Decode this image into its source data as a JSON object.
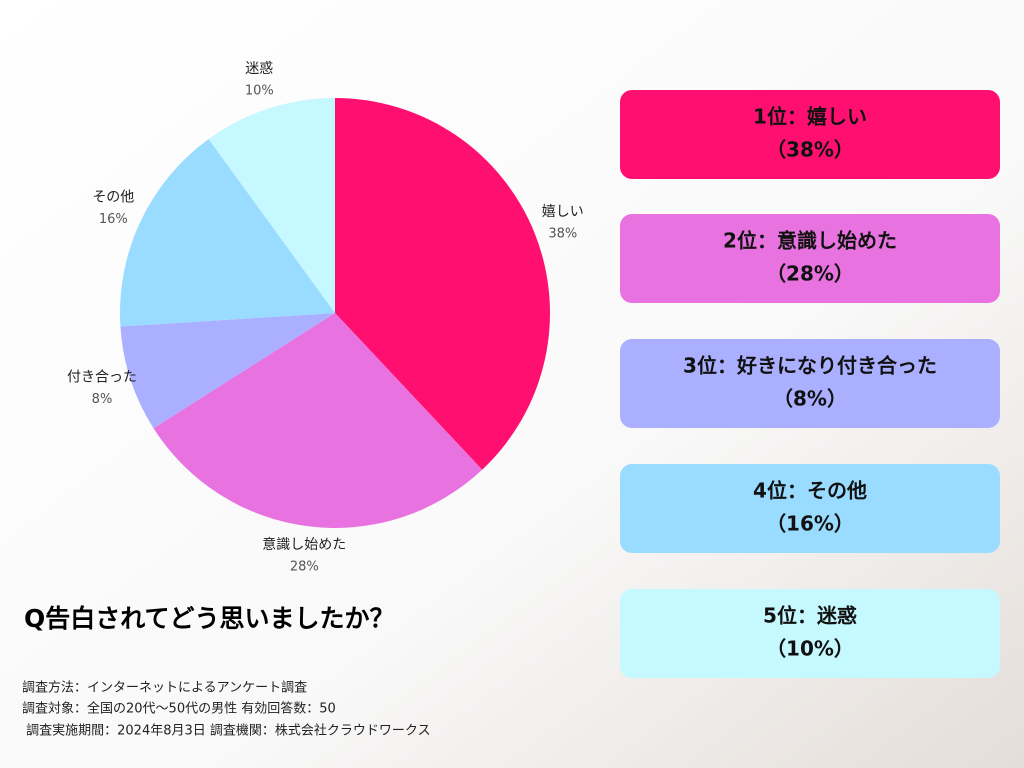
{
  "chart_data": {
    "type": "pie",
    "categories": [
      "嬉しい",
      "意識し始めた",
      "付き合った",
      "その他",
      "迷惑"
    ],
    "values": [
      38,
      28,
      8,
      16,
      10
    ],
    "value_labels": [
      "38%",
      "28%",
      "8%",
      "16%",
      "10%"
    ],
    "colors": [
      "#ff1070",
      "#e873e0",
      "#aab0ff",
      "#99dcff",
      "#c6f8ff"
    ]
  },
  "ranking": [
    {
      "title": "1位：嬉しい",
      "percent": "（38%）"
    },
    {
      "title": "2位：意識し始めた",
      "percent": "（28%）"
    },
    {
      "title": "3位：好きになり付き合った",
      "percent": "（8%）"
    },
    {
      "title": "4位：その他",
      "percent": "（16%）"
    },
    {
      "title": "5位：迷惑",
      "percent": "（10%）"
    }
  ],
  "question": "Q告白されてどう思いましたか？",
  "notes": [
    "調査方法：インターネットによるアンケート調査",
    "調査対象：全国の20代〜50代の男性 有効回答数：50",
    " 調査実施期間：2024年8月3日 調査機関：株式会社クラウドワークス"
  ]
}
